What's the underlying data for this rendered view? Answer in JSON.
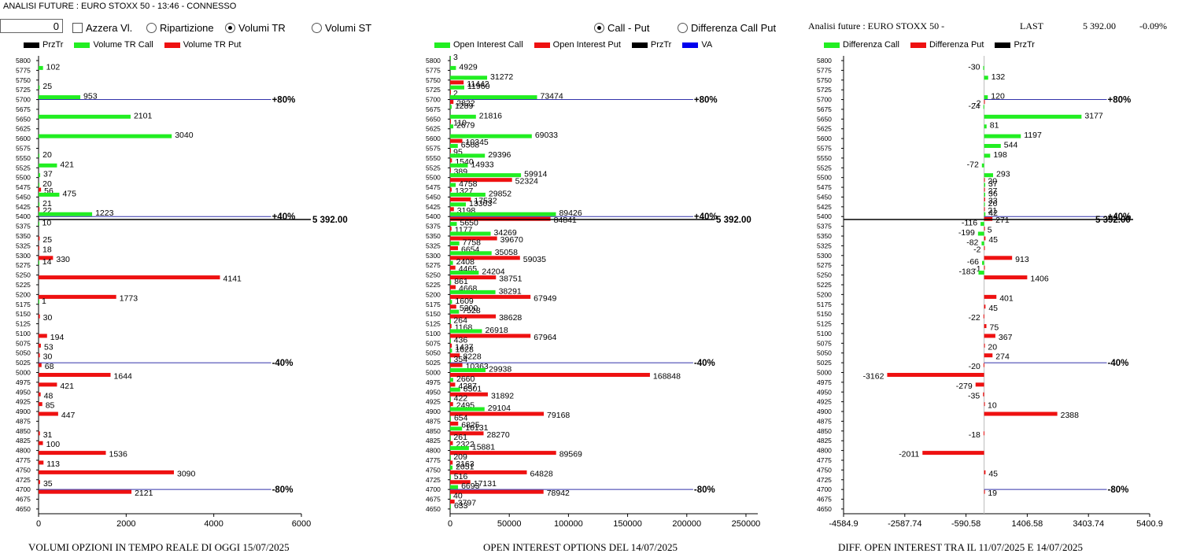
{
  "window": {
    "title": "ANALISI FUTURE : EURO STOXX 50 - 13:46 - CONNESSO"
  },
  "controls": {
    "input_value": "0",
    "azzera_label": "Azzera Vl.",
    "ripartizione_label": "Ripartizione",
    "volumi_tr_label": "Volumi TR",
    "volumi_st_label": "Volumi ST",
    "call_put_label": "Call - Put",
    "diff_call_put_label": "Differenza Call Put"
  },
  "header_right": {
    "title": "Analisi future : EURO STOXX 50 -",
    "last_label": "LAST",
    "last_value": "5 392.00",
    "change": "-0.09%"
  },
  "legends": {
    "left": [
      "PrzTr",
      "Volume TR Call",
      "Volume TR Put"
    ],
    "middle": [
      "Open Interest Call",
      "Open Interest Put",
      "PrzTr",
      "VA"
    ],
    "right": [
      "Differenza Call",
      "Differenza Put",
      "PrzTr"
    ]
  },
  "colors": {
    "call": "#22ee22",
    "put": "#ee1111",
    "przr": "#000000",
    "va": "#0000ee",
    "ref_line": "#3333aa"
  },
  "chart_data": [
    {
      "type": "bar",
      "title": "VOLUMI OPZIONI IN TEMPO REALE DI OGGI  15/07/2025",
      "categories": [
        "5800",
        "5775",
        "5750",
        "5725",
        "5700",
        "5675",
        "5650",
        "5625",
        "5600",
        "5575",
        "5550",
        "5525",
        "5500",
        "5475",
        "5450",
        "5425",
        "5400",
        "5375",
        "5350",
        "5325",
        "5300",
        "5275",
        "5250",
        "5225",
        "5200",
        "5175",
        "5150",
        "5125",
        "5100",
        "5075",
        "5050",
        "5025",
        "5000",
        "4975",
        "4950",
        "4925",
        "4900",
        "4875",
        "4850",
        "4825",
        "4800",
        "4775",
        "4750",
        "4725",
        "4700",
        "4675",
        "4650"
      ],
      "series": [
        {
          "name": "Volume TR Call",
          "values": [
            0,
            102,
            0,
            25,
            953,
            0,
            2101,
            0,
            3040,
            0,
            20,
            421,
            37,
            20,
            475,
            21,
            1223,
            10,
            0,
            0,
            0,
            14,
            0,
            0,
            0,
            1,
            0,
            0,
            0,
            0,
            0,
            0,
            0,
            0,
            0,
            0,
            0,
            0,
            0,
            0,
            0,
            0,
            0,
            0,
            0,
            0,
            0
          ]
        },
        {
          "name": "Volume TR Put",
          "values": [
            0,
            0,
            0,
            0,
            0,
            0,
            0,
            0,
            0,
            0,
            0,
            0,
            0,
            56,
            0,
            22,
            0,
            0,
            25,
            18,
            330,
            0,
            4141,
            0,
            1773,
            0,
            30,
            0,
            194,
            53,
            30,
            68,
            1644,
            421,
            48,
            85,
            447,
            0,
            31,
            100,
            1536,
            113,
            3090,
            35,
            2121,
            0,
            0
          ]
        }
      ],
      "xticks": [
        "0",
        "2000",
        "4000",
        "6000"
      ],
      "xlim": [
        0,
        6000
      ],
      "ref_lines": [
        {
          "strike": "5700",
          "label": "+80%"
        },
        {
          "strike": "5400",
          "label": "+40%"
        },
        {
          "strike": "5025",
          "label": "-40%"
        },
        {
          "strike": "4700",
          "label": "-80%"
        }
      ],
      "price_label": "5 392.00"
    },
    {
      "type": "bar",
      "title": "OPEN INTEREST OPTIONS DEL 14/07/2025",
      "categories": [
        "5800",
        "5775",
        "5750",
        "5725",
        "5700",
        "5675",
        "5650",
        "5625",
        "5600",
        "5575",
        "5550",
        "5525",
        "5500",
        "5475",
        "5450",
        "5425",
        "5400",
        "5375",
        "5350",
        "5325",
        "5300",
        "5275",
        "5250",
        "5225",
        "5200",
        "5175",
        "5150",
        "5125",
        "5100",
        "5075",
        "5050",
        "5025",
        "5000",
        "4975",
        "4950",
        "4925",
        "4900",
        "4875",
        "4850",
        "4825",
        "4800",
        "4775",
        "4750",
        "4725",
        "4700",
        "4675",
        "4650"
      ],
      "series": [
        {
          "name": "Open Interest Call",
          "values": [
            3,
            4929,
            31272,
            11960,
            73474,
            1289,
            21816,
            2679,
            69033,
            6508,
            29396,
            14933,
            59914,
            4758,
            29852,
            13303,
            89426,
            5650,
            34269,
            7758,
            35058,
            2408,
            24204,
            861,
            38291,
            1609,
            7528,
            264,
            26918,
            436,
            1628,
            354,
            29938,
            2660,
            8501,
            422,
            29104,
            654,
            10131,
            261,
            15881,
            209,
            2051,
            516,
            6693,
            40,
            633
          ]
        },
        {
          "name": "Open Interest Put",
          "values": [
            0,
            0,
            11442,
            2,
            2822,
            0,
            110,
            0,
            10345,
            95,
            1540,
            389,
            52324,
            1327,
            17532,
            3198,
            84841,
            1177,
            39670,
            6654,
            59035,
            4465,
            38751,
            4668,
            67949,
            5200,
            38628,
            1168,
            67964,
            1437,
            8228,
            10363,
            168848,
            4287,
            31892,
            2495,
            79168,
            6825,
            28270,
            2322,
            89569,
            2163,
            64828,
            17131,
            78942,
            3797,
            0
          ]
        }
      ],
      "xticks": [
        "0",
        "50000",
        "100000",
        "150000",
        "200000",
        "250000"
      ],
      "xlim": [
        0,
        260000
      ],
      "ref_lines": [
        {
          "strike": "5700",
          "label": "+80%"
        },
        {
          "strike": "5400",
          "label": "+40%"
        },
        {
          "strike": "5025",
          "label": "-40%"
        },
        {
          "strike": "4700",
          "label": "-80%"
        }
      ],
      "price_label": "5 392.00"
    },
    {
      "type": "bar",
      "title": "DIFF. OPEN INTEREST TRA IL 11/07/2025 E 14/07/2025",
      "categories": [
        "5800",
        "5775",
        "5750",
        "5725",
        "5700",
        "5675",
        "5650",
        "5625",
        "5600",
        "5575",
        "5550",
        "5525",
        "5500",
        "5475",
        "5450",
        "5425",
        "5400",
        "5375",
        "5350",
        "5325",
        "5300",
        "5275",
        "5250",
        "5225",
        "5200",
        "5175",
        "5150",
        "5125",
        "5100",
        "5075",
        "5050",
        "5025",
        "5000",
        "4975",
        "4950",
        "4925",
        "4900",
        "4875",
        "4850",
        "4825",
        "4800",
        "4775",
        "4750",
        "4725",
        "4700",
        "4675",
        "4650"
      ],
      "series": [
        {
          "name": "Differenza Call",
          "values": [
            0,
            -30,
            132,
            0,
            120,
            -24,
            3177,
            81,
            1197,
            544,
            198,
            -72,
            293,
            37,
            36,
            26,
            42,
            -116,
            -199,
            -82,
            0,
            -66,
            -183,
            0,
            0,
            0,
            0,
            0,
            0,
            0,
            0,
            0,
            0,
            0,
            0,
            0,
            0,
            0,
            0,
            0,
            0,
            0,
            0,
            0,
            0,
            0,
            0
          ]
        },
        {
          "name": "Differenza Put",
          "values": [
            0,
            0,
            0,
            0,
            -2,
            0,
            0,
            0,
            0,
            0,
            0,
            0,
            20,
            27,
            33,
            21,
            271,
            5,
            45,
            -2,
            913,
            -1,
            1406,
            0,
            401,
            45,
            -22,
            75,
            367,
            20,
            274,
            -20,
            -3162,
            -279,
            -35,
            10,
            2388,
            0,
            -18,
            0,
            -2011,
            0,
            45,
            0,
            19,
            0,
            0
          ]
        }
      ],
      "xticks": [
        "-4584.9",
        "-2587.74",
        "-590.58",
        "1406.58",
        "3403.74",
        "5400.9"
      ],
      "xlim": [
        -4584.9,
        5400.9
      ],
      "ref_lines": [
        {
          "strike": "5700",
          "label": "+80%"
        },
        {
          "strike": "5400",
          "label": "+40%"
        },
        {
          "strike": "5025",
          "label": "-40%"
        },
        {
          "strike": "4700",
          "label": "-80%"
        }
      ],
      "price_label": "5 392.00"
    }
  ]
}
